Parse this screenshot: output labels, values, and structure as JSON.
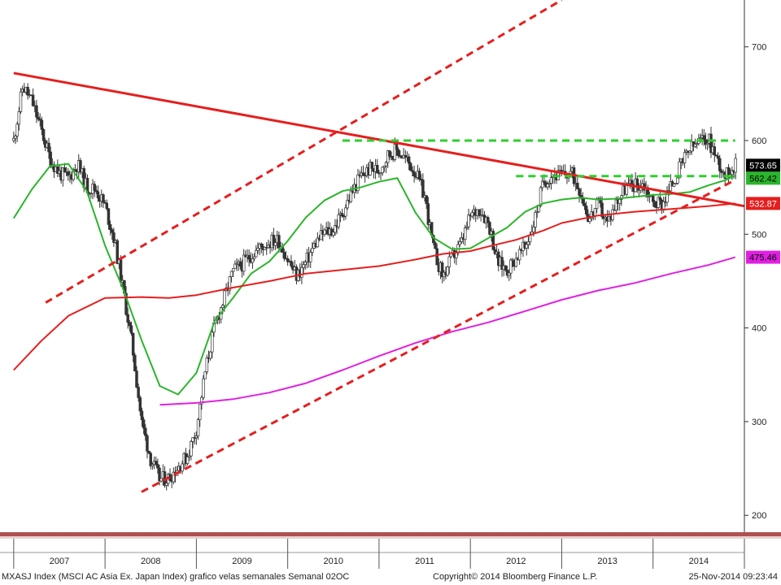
{
  "chart_data": {
    "type": "candlestick",
    "ylim": [
      182,
      750
    ],
    "grid": false,
    "y_axis_position": "right",
    "yticks": [
      200,
      300,
      400,
      500,
      600,
      700
    ],
    "x_year_labels": [
      "2007",
      "2008",
      "2009",
      "2010",
      "2011",
      "2012",
      "2013",
      "2014"
    ],
    "price_series": {
      "interval": "weekly",
      "color": "#333333",
      "x": [
        2007.0,
        2007.1,
        2007.2,
        2007.3,
        2007.4,
        2007.5,
        2007.6,
        2007.7,
        2007.8,
        2007.9,
        2008.0,
        2008.1,
        2008.2,
        2008.3,
        2008.4,
        2008.5,
        2008.6,
        2008.7,
        2008.8,
        2008.9,
        2009.0,
        2009.1,
        2009.2,
        2009.3,
        2009.4,
        2009.5,
        2009.6,
        2009.7,
        2009.8,
        2009.9,
        2010.0,
        2010.1,
        2010.2,
        2010.3,
        2010.4,
        2010.5,
        2010.6,
        2010.7,
        2010.8,
        2010.9,
        2011.0,
        2011.1,
        2011.2,
        2011.3,
        2011.4,
        2011.5,
        2011.6,
        2011.7,
        2011.8,
        2011.9,
        2012.0,
        2012.1,
        2012.2,
        2012.3,
        2012.4,
        2012.5,
        2012.6,
        2012.7,
        2012.8,
        2012.9,
        2013.0,
        2013.1,
        2013.2,
        2013.3,
        2013.4,
        2013.5,
        2013.6,
        2013.7,
        2013.8,
        2013.9,
        2014.0,
        2014.1,
        2014.2,
        2014.3,
        2014.4,
        2014.5,
        2014.6,
        2014.7,
        2014.8,
        2014.85,
        2014.9
      ],
      "close": [
        600,
        658,
        642,
        612,
        580,
        565,
        560,
        575,
        550,
        548,
        530,
        495,
        440,
        380,
        300,
        260,
        238,
        240,
        252,
        263,
        292,
        355,
        402,
        430,
        460,
        468,
        478,
        486,
        492,
        494,
        473,
        455,
        470,
        490,
        502,
        505,
        523,
        544,
        562,
        570,
        568,
        585,
        590,
        579,
        566,
        540,
        482,
        455,
        475,
        490,
        519,
        528,
        512,
        470,
        462,
        475,
        486,
        514,
        556,
        564,
        562,
        566,
        548,
        516,
        532,
        512,
        535,
        550,
        553,
        553,
        534,
        533,
        552,
        572,
        590,
        598,
        603,
        580,
        562,
        571,
        573.65
      ]
    },
    "moving_averages": [
      {
        "name": "",
        "color": "#2bb52b",
        "x": [
          2007.0,
          2007.2,
          2007.4,
          2007.6,
          2007.8,
          2008.0,
          2008.2,
          2008.4,
          2008.6,
          2008.8,
          2009.0,
          2009.2,
          2009.4,
          2009.6,
          2009.8,
          2010.0,
          2010.2,
          2010.4,
          2010.6,
          2010.8,
          2011.0,
          2011.2,
          2011.4,
          2011.6,
          2011.8,
          2012.0,
          2012.2,
          2012.4,
          2012.6,
          2012.8,
          2013.0,
          2013.2,
          2013.4,
          2013.6,
          2013.8,
          2014.0,
          2014.2,
          2014.4,
          2014.6,
          2014.8,
          2014.9
        ],
        "y": [
          517,
          548,
          573,
          575,
          546,
          488,
          441,
          387,
          338,
          329,
          352,
          407,
          432,
          458,
          471,
          493,
          518,
          536,
          546,
          550,
          556,
          560,
          523,
          496,
          484,
          485,
          496,
          507,
          524,
          533,
          537,
          539,
          537,
          538,
          540,
          542,
          543,
          545,
          552,
          558,
          562.42
        ]
      },
      {
        "name": "",
        "color": "#e61e1e",
        "x": [
          2007.0,
          2007.3,
          2007.6,
          2008.0,
          2008.4,
          2008.7,
          2009.0,
          2009.4,
          2009.8,
          2010.2,
          2010.6,
          2011.0,
          2011.4,
          2011.7,
          2012.0,
          2012.2,
          2012.5,
          2012.8,
          2013.0,
          2013.4,
          2013.8,
          2014.2,
          2014.6,
          2014.9
        ],
        "y": [
          355,
          386,
          413,
          432,
          433,
          432,
          435,
          443,
          450,
          458,
          462,
          466,
          473,
          479,
          482,
          487,
          494,
          504,
          512,
          520,
          524,
          527,
          530,
          532.87
        ]
      },
      {
        "name": "",
        "color": "#e020e0",
        "x": [
          2008.6,
          2009.0,
          2009.4,
          2009.8,
          2010.2,
          2010.6,
          2011.0,
          2011.4,
          2011.8,
          2012.2,
          2012.6,
          2013.0,
          2013.4,
          2013.8,
          2014.2,
          2014.6,
          2014.9
        ],
        "y": [
          318,
          320,
          324,
          331,
          341,
          355,
          370,
          384,
          396,
          406,
          418,
          430,
          440,
          448,
          458,
          467,
          475.46
        ]
      }
    ],
    "trendlines": [
      {
        "style": "solid",
        "color": "#e61e1e",
        "x": [
          2007.0,
          2015.0
        ],
        "y": [
          672,
          530
        ]
      },
      {
        "style": "dashed",
        "color": "#e61e1e",
        "x": [
          2007.35,
          2013.0
        ],
        "y": [
          427,
          750
        ]
      },
      {
        "style": "dashed",
        "color": "#e61e1e",
        "x": [
          2008.4,
          2014.9
        ],
        "y": [
          225,
          558
        ]
      },
      {
        "style": "dashed",
        "color": "#2bd02b",
        "x": [
          2010.6,
          2014.9
        ],
        "y": [
          600,
          600
        ]
      },
      {
        "style": "dashed",
        "color": "#2bd02b",
        "x": [
          2012.5,
          2014.9
        ],
        "y": [
          562,
          562
        ]
      }
    ],
    "last_value_labels": [
      {
        "value": "573.65",
        "bg": "#000000",
        "fg": "#ffffff"
      },
      {
        "value": "562.42",
        "bg": "#2bb52b",
        "fg": "#000000"
      },
      {
        "value": "532.87",
        "bg": "#e61e1e",
        "fg": "#ffffff"
      },
      {
        "value": "475.46",
        "bg": "#e020e0",
        "fg": "#000000"
      }
    ]
  },
  "footer": {
    "left": "MXASJ Index (MSCI AC Asia Ex. Japan Index) grafico velas semanales  Semanal 02OC",
    "center": "Copyright© 2014 Bloomberg Finance L.P.",
    "right": "25-Nov-2014 09:23:44"
  }
}
